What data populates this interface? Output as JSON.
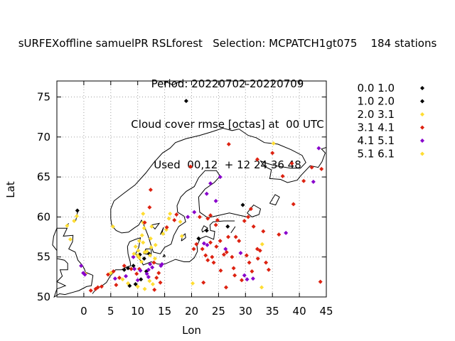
{
  "header": {
    "line1": "sURFEXoffline samuelPR RSLforest   Selection: MCPATCH1gt075    184 stations",
    "line2": "Period: 20220702-20220709",
    "line3": "Cloud cover rmse [octas] at  00 UTC",
    "line4": "Used  00,12  + 12 24 36 48"
  },
  "chart_data": {
    "type": "scatter",
    "xlabel": "Lon",
    "ylabel": "Lat",
    "xlim": [
      -5,
      45
    ],
    "ylim": [
      50,
      77
    ],
    "xticks": [
      0,
      5,
      10,
      15,
      20,
      25,
      30,
      35,
      40,
      45
    ],
    "yticks": [
      50,
      55,
      60,
      65,
      70,
      75
    ],
    "grid": true,
    "legend_position": "right",
    "series": [
      {
        "name": "0.0 1.0",
        "color": "#000000",
        "points": [
          [
            19.0,
            74.5
          ]
        ]
      },
      {
        "name": "1.0 2.0",
        "color": "#000000",
        "points": [
          [
            -1.2,
            60.8
          ],
          [
            7.5,
            53.4
          ],
          [
            8.2,
            53.6
          ],
          [
            9.2,
            53.9
          ],
          [
            9.6,
            51.6
          ],
          [
            10.6,
            52.2
          ],
          [
            11.2,
            54.8
          ],
          [
            12.1,
            55.4
          ],
          [
            11.6,
            53.2
          ],
          [
            10.4,
            55.3
          ],
          [
            8.5,
            51.4
          ],
          [
            21.3,
            57.3
          ],
          [
            22.8,
            58.3
          ],
          [
            26.7,
            58.8
          ],
          [
            29.5,
            61.5
          ]
        ]
      },
      {
        "name": "2.0 3.1",
        "color": "#ffdd33",
        "points": [
          [
            -3.1,
            58.9
          ],
          [
            -1.8,
            59.5
          ],
          [
            -1.3,
            60.1
          ],
          [
            -2.5,
            57.2
          ],
          [
            0.3,
            52.9
          ],
          [
            5.0,
            53.0
          ],
          [
            7.2,
            52.2
          ],
          [
            8.2,
            51.7
          ],
          [
            10.0,
            51.3
          ],
          [
            11.3,
            51.0
          ],
          [
            12.2,
            52.0
          ],
          [
            12.8,
            51.6
          ],
          [
            10.7,
            54.4
          ],
          [
            11.3,
            55.6
          ],
          [
            12.3,
            55.2
          ],
          [
            13.2,
            54.8
          ],
          [
            11.0,
            56.8
          ],
          [
            9.6,
            56.3
          ],
          [
            10.3,
            57.0
          ],
          [
            10.8,
            57.7
          ],
          [
            11.2,
            58.6
          ],
          [
            11.0,
            59.3
          ],
          [
            11.0,
            60.4
          ],
          [
            12.6,
            58.8
          ],
          [
            14.7,
            57.9
          ],
          [
            15.3,
            58.4
          ],
          [
            16.0,
            60.4
          ],
          [
            17.9,
            59.4
          ],
          [
            5.4,
            58.8
          ],
          [
            20.2,
            51.7
          ],
          [
            35.2,
            69.2
          ],
          [
            33.1,
            56.6
          ],
          [
            33.0,
            51.2
          ]
        ]
      },
      {
        "name": "3.1 4.1",
        "color": "#dd2211",
        "points": [
          [
            1.3,
            50.8
          ],
          [
            2.2,
            51.0
          ],
          [
            2.6,
            51.2
          ],
          [
            3.3,
            51.3
          ],
          [
            4.5,
            52.8
          ],
          [
            5.5,
            53.2
          ],
          [
            6.6,
            52.4
          ],
          [
            6.0,
            51.5
          ],
          [
            7.5,
            53.9
          ],
          [
            8.8,
            53.5
          ],
          [
            9.8,
            52.9
          ],
          [
            10.3,
            53.5
          ],
          [
            13.0,
            54.3
          ],
          [
            13.9,
            53.0
          ],
          [
            13.5,
            52.4
          ],
          [
            14.2,
            51.8
          ],
          [
            13.1,
            50.9
          ],
          [
            11.3,
            59.3
          ],
          [
            12.4,
            63.4
          ],
          [
            12.2,
            61.2
          ],
          [
            15.4,
            58.7
          ],
          [
            16.8,
            59.6
          ],
          [
            17.2,
            60.3
          ],
          [
            19.8,
            66.3
          ],
          [
            21.5,
            60.0
          ],
          [
            23.0,
            59.8
          ],
          [
            23.5,
            60.2
          ],
          [
            24.8,
            59.6
          ],
          [
            24.5,
            59.0
          ],
          [
            25.3,
            57.0
          ],
          [
            26.5,
            55.6
          ],
          [
            26.0,
            55.3
          ],
          [
            27.5,
            55.0
          ],
          [
            27.8,
            53.6
          ],
          [
            28.0,
            52.7
          ],
          [
            29.3,
            52.1
          ],
          [
            30.2,
            55.2
          ],
          [
            30.7,
            54.3
          ],
          [
            31.2,
            53.2
          ],
          [
            32.3,
            54.8
          ],
          [
            32.7,
            55.8
          ],
          [
            33.8,
            54.3
          ],
          [
            34.3,
            53.4
          ],
          [
            32.2,
            56.0
          ],
          [
            31.5,
            58.8
          ],
          [
            33.3,
            58.2
          ],
          [
            29.8,
            59.5
          ],
          [
            30.5,
            60.0
          ],
          [
            31.0,
            61.0
          ],
          [
            28.2,
            57.5
          ],
          [
            28.8,
            57.0
          ],
          [
            26.8,
            57.5
          ],
          [
            24.6,
            56.3
          ],
          [
            23.8,
            55.0
          ],
          [
            23.0,
            54.6
          ],
          [
            24.1,
            54.3
          ],
          [
            22.2,
            51.8
          ],
          [
            25.4,
            53.3
          ],
          [
            26.4,
            51.2
          ],
          [
            23.5,
            56.8
          ],
          [
            22.6,
            55.2
          ],
          [
            22.0,
            56.0
          ],
          [
            20.9,
            56.6
          ],
          [
            20.4,
            56.0
          ],
          [
            36.2,
            57.8
          ],
          [
            38.9,
            61.6
          ],
          [
            40.8,
            64.5
          ],
          [
            42.3,
            66.2
          ],
          [
            44.1,
            66.0
          ],
          [
            36.9,
            65.1
          ],
          [
            35.0,
            68.0
          ],
          [
            32.2,
            67.2
          ],
          [
            26.9,
            69.1
          ],
          [
            38.6,
            66.7
          ],
          [
            43.9,
            51.9
          ]
        ]
      },
      {
        "name": "4.1 5.1",
        "color": "#8800cc",
        "points": [
          [
            -0.5,
            53.9
          ],
          [
            -0.1,
            53.0
          ],
          [
            0.2,
            52.8
          ],
          [
            5.8,
            52.3
          ],
          [
            7.8,
            52.6
          ],
          [
            9.4,
            53.5
          ],
          [
            10.5,
            53.3
          ],
          [
            11.7,
            52.9
          ],
          [
            12.0,
            53.4
          ],
          [
            12.7,
            53.7
          ],
          [
            12.3,
            54.1
          ],
          [
            12.0,
            52.5
          ],
          [
            10.0,
            52.1
          ],
          [
            9.2,
            55.0
          ],
          [
            14.5,
            54.1
          ],
          [
            14.3,
            53.9
          ],
          [
            19.3,
            60.0
          ],
          [
            20.5,
            60.6
          ],
          [
            22.8,
            62.9
          ],
          [
            23.5,
            64.2
          ],
          [
            24.5,
            62.0
          ],
          [
            25.3,
            65.0
          ],
          [
            22.3,
            56.7
          ],
          [
            22.9,
            56.5
          ],
          [
            26.3,
            56.0
          ],
          [
            29.8,
            52.7
          ],
          [
            30.3,
            52.2
          ],
          [
            31.4,
            52.3
          ],
          [
            29.1,
            55.5
          ],
          [
            37.5,
            58.0
          ],
          [
            42.6,
            64.4
          ],
          [
            43.6,
            68.6
          ]
        ]
      },
      {
        "name": "5.1 6.1",
        "color": "#ffdd33",
        "points": [
          [
            10.0,
            55.2
          ],
          [
            10.3,
            54.9
          ],
          [
            11.7,
            55.7
          ],
          [
            12.5,
            56.2
          ],
          [
            12.4,
            57.3
          ],
          [
            13.3,
            56.5
          ],
          [
            15.8,
            59.8
          ],
          [
            18.2,
            57.6
          ],
          [
            10.1,
            55.8
          ],
          [
            9.3,
            55.4
          ]
        ]
      }
    ]
  }
}
